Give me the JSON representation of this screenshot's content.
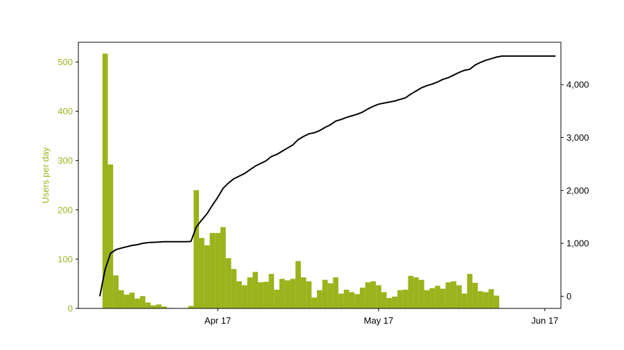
{
  "chart_data": {
    "type": "bar",
    "title": "",
    "xlabel": "",
    "ylabel": "Users per day",
    "y2label": "",
    "x_ticks": [
      "Apr 17",
      "May 17",
      "Jun 17"
    ],
    "y_ticks": [
      "0",
      "100",
      "200",
      "300",
      "400",
      "500"
    ],
    "y2_ticks": [
      "0",
      "1,000",
      "2,000",
      "3,000",
      "4,000"
    ],
    "ylim": [
      0,
      540
    ],
    "y2lim": [
      -230,
      4800
    ],
    "x_range_days": [
      "2024-03-22",
      "2024-06-20"
    ],
    "grid": false,
    "colors": {
      "bars": "#9bb31c",
      "line": "#000000",
      "left_axis": "#9bb31c",
      "right_axis": "#000000"
    },
    "series": [
      {
        "type": "bar",
        "axis": "left",
        "x": [
          "2024-03-25",
          "2024-03-26",
          "2024-03-27",
          "2024-03-28",
          "2024-03-29",
          "2024-03-30",
          "2024-03-31",
          "2024-04-01",
          "2024-04-02",
          "2024-04-03",
          "2024-04-04",
          "2024-04-05",
          "2024-04-06",
          "2024-04-07",
          "2024-04-08",
          "2024-04-09",
          "2024-04-10",
          "2024-04-11",
          "2024-04-12",
          "2024-04-13",
          "2024-04-14",
          "2024-04-15",
          "2024-04-16",
          "2024-04-17",
          "2024-04-18",
          "2024-04-19",
          "2024-04-20",
          "2024-04-21",
          "2024-04-22",
          "2024-04-23",
          "2024-04-24",
          "2024-04-25",
          "2024-04-26",
          "2024-04-27",
          "2024-04-28",
          "2024-04-29",
          "2024-04-30",
          "2024-05-01",
          "2024-05-02",
          "2024-05-03",
          "2024-05-04",
          "2024-05-05",
          "2024-05-06",
          "2024-05-07",
          "2024-05-08",
          "2024-05-09",
          "2024-05-10",
          "2024-05-11",
          "2024-05-12",
          "2024-05-13",
          "2024-05-14",
          "2024-05-15",
          "2024-05-16",
          "2024-05-17",
          "2024-05-18",
          "2024-05-19",
          "2024-05-20",
          "2024-05-21",
          "2024-05-22",
          "2024-05-23",
          "2024-05-24",
          "2024-05-25",
          "2024-05-26",
          "2024-05-27",
          "2024-05-28",
          "2024-05-29",
          "2024-05-30",
          "2024-05-31",
          "2024-06-01",
          "2024-06-02",
          "2024-06-03",
          "2024-06-04",
          "2024-06-05",
          "2024-06-06",
          "2024-06-07",
          "2024-06-08",
          "2024-06-09",
          "2024-06-10",
          "2024-06-11",
          "2024-06-12",
          "2024-06-13",
          "2024-06-14",
          "2024-06-15",
          "2024-06-16",
          "2024-06-17",
          "2024-06-18",
          "2024-06-19"
        ],
        "values": [
          0,
          0,
          517,
          292,
          67,
          37,
          28,
          32,
          20,
          25,
          12,
          6,
          8,
          4,
          1,
          0,
          0,
          1,
          5,
          240,
          143,
          128,
          153,
          153,
          165,
          102,
          80,
          55,
          47,
          63,
          74,
          53,
          54,
          70,
          38,
          60,
          57,
          60,
          96,
          63,
          55,
          22,
          37,
          58,
          51,
          63,
          30,
          38,
          33,
          29,
          42,
          53,
          55,
          47,
          33,
          21,
          24,
          37,
          38,
          66,
          63,
          58,
          37,
          41,
          46,
          40,
          53,
          55,
          47,
          30,
          70,
          52,
          35,
          33,
          39,
          26,
          0,
          0,
          0,
          0,
          0,
          0,
          0,
          0,
          0,
          0,
          0
        ]
      },
      {
        "type": "line",
        "axis": "right",
        "x": [
          "2024-03-26",
          "2024-03-27",
          "2024-03-28",
          "2024-03-29",
          "2024-03-30",
          "2024-03-31",
          "2024-04-01",
          "2024-04-02",
          "2024-04-03",
          "2024-04-04",
          "2024-04-05",
          "2024-04-06",
          "2024-04-07",
          "2024-04-08",
          "2024-04-09",
          "2024-04-10",
          "2024-04-11",
          "2024-04-12",
          "2024-04-13",
          "2024-04-14",
          "2024-04-15",
          "2024-04-16",
          "2024-04-17",
          "2024-04-18",
          "2024-04-19",
          "2024-04-20",
          "2024-04-21",
          "2024-04-22",
          "2024-04-23",
          "2024-04-24",
          "2024-04-25",
          "2024-04-26",
          "2024-04-27",
          "2024-04-28",
          "2024-04-29",
          "2024-04-30",
          "2024-05-01",
          "2024-05-02",
          "2024-05-03",
          "2024-05-04",
          "2024-05-05",
          "2024-05-06",
          "2024-05-07",
          "2024-05-08",
          "2024-05-09",
          "2024-05-10",
          "2024-05-11",
          "2024-05-12",
          "2024-05-13",
          "2024-05-14",
          "2024-05-15",
          "2024-05-16",
          "2024-05-17",
          "2024-05-18",
          "2024-05-19",
          "2024-05-20",
          "2024-05-21",
          "2024-05-22",
          "2024-05-23",
          "2024-05-24",
          "2024-05-25",
          "2024-05-26",
          "2024-05-27",
          "2024-05-28",
          "2024-05-29",
          "2024-05-30",
          "2024-05-31",
          "2024-06-01",
          "2024-06-02",
          "2024-06-03",
          "2024-06-04",
          "2024-06-05",
          "2024-06-06",
          "2024-06-07",
          "2024-06-08",
          "2024-06-09",
          "2024-06-10",
          "2024-06-11",
          "2024-06-12",
          "2024-06-13",
          "2024-06-14",
          "2024-06-15",
          "2024-06-16",
          "2024-06-17",
          "2024-06-18",
          "2024-06-19"
        ],
        "values": [
          0,
          510,
          810,
          880,
          910,
          935,
          960,
          975,
          1000,
          1015,
          1020,
          1025,
          1030,
          1030,
          1030,
          1030,
          1030,
          1035,
          1310,
          1440,
          1560,
          1720,
          1870,
          2040,
          2140,
          2220,
          2270,
          2320,
          2390,
          2460,
          2510,
          2560,
          2640,
          2680,
          2740,
          2800,
          2860,
          2960,
          3020,
          3070,
          3090,
          3130,
          3190,
          3240,
          3310,
          3340,
          3380,
          3410,
          3440,
          3480,
          3540,
          3590,
          3630,
          3650,
          3670,
          3690,
          3720,
          3750,
          3820,
          3880,
          3940,
          3980,
          4010,
          4050,
          4100,
          4130,
          4180,
          4230,
          4270,
          4290,
          4370,
          4420,
          4460,
          4490,
          4520,
          4540,
          4540,
          4540,
          4540,
          4540,
          4540,
          4540,
          4540,
          4540,
          4540,
          4540
        ]
      }
    ]
  }
}
